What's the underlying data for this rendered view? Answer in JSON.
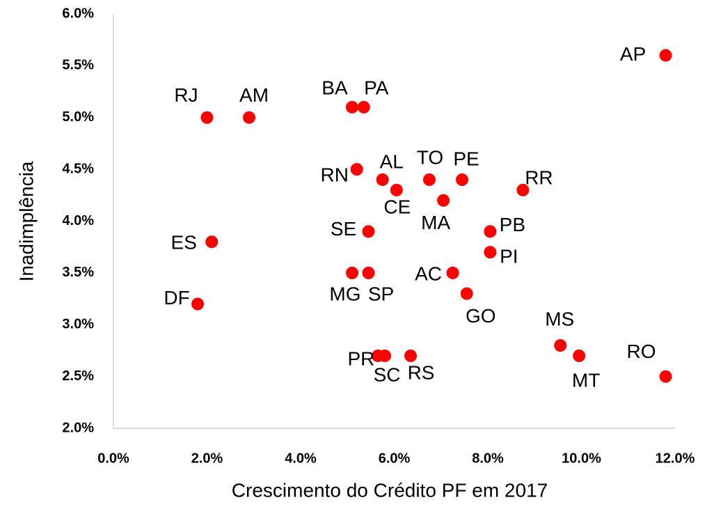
{
  "chart_data": {
    "type": "scatter",
    "x_label": "Crescimento do Crédito PF em 2017",
    "y_label": "Inadimplência",
    "labels": [
      "AP",
      "RJ",
      "AM",
      "BA",
      "PA",
      "RN",
      "AL",
      "CE",
      "TO",
      "PE",
      "MA",
      "RR",
      "SE",
      "PB",
      "PI",
      "ES",
      "DF",
      "MG",
      "SP",
      "AC",
      "GO",
      "MS",
      "MT",
      "RO",
      "PR",
      "SC",
      "RS"
    ],
    "x": [
      11.8,
      2.0,
      2.9,
      5.1,
      5.35,
      5.2,
      5.75,
      6.05,
      6.75,
      7.45,
      7.05,
      8.75,
      5.45,
      8.05,
      8.05,
      2.1,
      1.8,
      5.1,
      5.45,
      7.25,
      7.55,
      9.55,
      9.95,
      11.8,
      5.65,
      5.8,
      6.35
    ],
    "y": [
      5.6,
      5.0,
      5.0,
      5.1,
      5.1,
      4.5,
      4.4,
      4.3,
      4.4,
      4.4,
      4.2,
      4.3,
      3.9,
      3.9,
      3.7,
      3.8,
      3.2,
      3.5,
      3.5,
      3.5,
      3.3,
      2.8,
      2.7,
      2.5,
      2.7,
      2.7,
      2.7
    ],
    "color": "#ff0000",
    "xlim": [
      0,
      12
    ],
    "ylim": [
      2,
      6
    ],
    "xticks": [
      {
        "value": 0,
        "label": "0.0%"
      },
      {
        "value": 2,
        "label": "2.0%"
      },
      {
        "value": 4,
        "label": "4.0%"
      },
      {
        "value": 6,
        "label": "6.0%"
      },
      {
        "value": 8,
        "label": "8.0%"
      },
      {
        "value": 10,
        "label": "10.0%"
      },
      {
        "value": 12,
        "label": "12.0%"
      }
    ],
    "yticks": [
      {
        "value": 2,
        "label": "2.0%"
      },
      {
        "value": 2.5,
        "label": "2.5%"
      },
      {
        "value": 3,
        "label": "3.0%"
      },
      {
        "value": 3.5,
        "label": "3.5%"
      },
      {
        "value": 4,
        "label": "4.0%"
      },
      {
        "value": 4.5,
        "label": "4.5%"
      },
      {
        "value": 5,
        "label": "5.0%"
      },
      {
        "value": 5.5,
        "label": "5.5%"
      },
      {
        "value": 6,
        "label": "6.0%"
      }
    ],
    "grid": false
  }
}
